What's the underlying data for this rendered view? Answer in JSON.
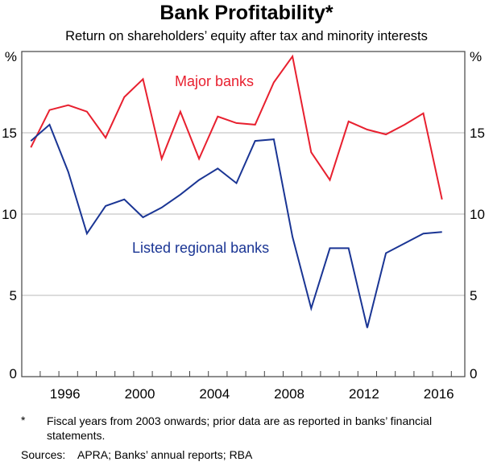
{
  "chart_data": {
    "type": "line",
    "title": "Bank Profitability*",
    "subtitle": "Return on shareholders’ equity after tax and minority interests",
    "ylabel_left": "%",
    "ylabel_right": "%",
    "ylim": [
      0,
      20
    ],
    "yticks": [
      0,
      5,
      10,
      15
    ],
    "x": [
      1994,
      1995,
      1996,
      1997,
      1998,
      1999,
      2000,
      2001,
      2002,
      2003,
      2004,
      2005,
      2006,
      2007,
      2008,
      2009,
      2010,
      2011,
      2012,
      2013,
      2014,
      2015,
      2016
    ],
    "xtick_labels": [
      "1996",
      "2000",
      "2004",
      "2008",
      "2012",
      "2016"
    ],
    "grid": true,
    "series": [
      {
        "name": "Major banks",
        "color": "#e8202f",
        "values": [
          14.1,
          16.4,
          16.7,
          16.3,
          14.7,
          17.2,
          18.3,
          13.4,
          16.3,
          13.4,
          16.0,
          15.6,
          15.5,
          18.1,
          19.7,
          13.8,
          12.1,
          15.7,
          15.2,
          14.9,
          15.5,
          16.2,
          10.9
        ]
      },
      {
        "name": "Listed regional banks",
        "color": "#1a3594",
        "values": [
          14.5,
          15.5,
          12.6,
          8.8,
          10.5,
          10.9,
          9.8,
          10.4,
          11.2,
          12.1,
          12.8,
          11.9,
          14.5,
          14.6,
          8.6,
          4.2,
          7.9,
          7.9,
          3.0,
          7.6,
          8.2,
          8.8,
          8.9
        ]
      }
    ]
  },
  "footnote": {
    "marker": "*",
    "text": "Fiscal years from 2003 onwards; prior data are as reported in banks’ financial statements."
  },
  "sources": {
    "label": "Sources:",
    "text": "APRA; Banks’ annual reports; RBA"
  }
}
